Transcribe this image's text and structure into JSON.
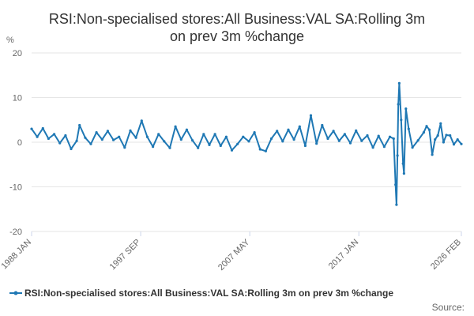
{
  "chart_data": {
    "type": "line",
    "title": "RSI:Non-specialised stores:All Business:VAL SA:Rolling 3m on prev 3m %change",
    "title_lines": [
      "RSI:Non-specialised stores:All Business:VAL SA:Rolling 3m",
      "on prev 3m %change"
    ],
    "ylabel": "%",
    "xlabel": "",
    "ylim": [
      -20,
      20
    ],
    "yticks": [
      -20,
      -10,
      0,
      10,
      20
    ],
    "x_range": [
      "1988-01",
      "2026-02"
    ],
    "xtick_labels": [
      {
        "label": "1988 JAN",
        "date": "1988-01"
      },
      {
        "label": "1997 SEP",
        "date": "1997-09"
      },
      {
        "label": "2007 MAY",
        "date": "2007-05"
      },
      {
        "label": "2017 JAN",
        "date": "2017-01"
      },
      {
        "label": "2026 FEB",
        "date": "2026-02"
      }
    ],
    "grid": true,
    "legend_position": "bottom",
    "source_label": "Source:",
    "series": [
      {
        "name": "RSI:Non-specialised stores:All Business:VAL SA:Rolling 3m on prev 3m %change",
        "color": "#1f78b4",
        "points": [
          [
            "1988-01",
            3.0
          ],
          [
            "1988-07",
            1.2
          ],
          [
            "1989-01",
            3.1
          ],
          [
            "1989-07",
            0.8
          ],
          [
            "1990-01",
            1.8
          ],
          [
            "1990-07",
            -0.2
          ],
          [
            "1991-01",
            1.5
          ],
          [
            "1991-07",
            -1.5
          ],
          [
            "1992-01",
            0.3
          ],
          [
            "1992-04",
            3.8
          ],
          [
            "1992-10",
            1.0
          ],
          [
            "1993-04",
            -0.4
          ],
          [
            "1993-10",
            2.2
          ],
          [
            "1994-04",
            0.6
          ],
          [
            "1994-10",
            2.5
          ],
          [
            "1995-04",
            0.5
          ],
          [
            "1995-10",
            1.2
          ],
          [
            "1996-04",
            -1.2
          ],
          [
            "1996-10",
            2.6
          ],
          [
            "1997-04",
            1.0
          ],
          [
            "1997-10",
            4.8
          ],
          [
            "1998-04",
            1.2
          ],
          [
            "1998-10",
            -1.0
          ],
          [
            "1999-04",
            1.8
          ],
          [
            "1999-10",
            0.2
          ],
          [
            "2000-04",
            -1.3
          ],
          [
            "2000-10",
            3.5
          ],
          [
            "2001-04",
            0.6
          ],
          [
            "2001-10",
            2.8
          ],
          [
            "2002-04",
            0.4
          ],
          [
            "2002-10",
            -1.3
          ],
          [
            "2003-04",
            1.8
          ],
          [
            "2003-10",
            -0.6
          ],
          [
            "2004-04",
            1.8
          ],
          [
            "2004-10",
            -0.8
          ],
          [
            "2005-04",
            1.2
          ],
          [
            "2005-10",
            -1.8
          ],
          [
            "2006-04",
            -0.4
          ],
          [
            "2006-10",
            1.2
          ],
          [
            "2007-04",
            0.2
          ],
          [
            "2007-10",
            2.2
          ],
          [
            "2008-04",
            -1.6
          ],
          [
            "2008-10",
            -2.0
          ],
          [
            "2009-04",
            0.8
          ],
          [
            "2009-10",
            2.5
          ],
          [
            "2010-04",
            0.2
          ],
          [
            "2010-10",
            2.8
          ],
          [
            "2011-04",
            0.6
          ],
          [
            "2011-10",
            3.5
          ],
          [
            "2012-04",
            -0.8
          ],
          [
            "2012-10",
            6.0
          ],
          [
            "2013-04",
            -0.3
          ],
          [
            "2013-10",
            3.8
          ],
          [
            "2014-04",
            0.8
          ],
          [
            "2014-10",
            2.5
          ],
          [
            "2015-04",
            0.3
          ],
          [
            "2015-10",
            1.8
          ],
          [
            "2016-04",
            -0.2
          ],
          [
            "2016-10",
            2.6
          ],
          [
            "2017-04",
            0.3
          ],
          [
            "2017-10",
            1.5
          ],
          [
            "2018-04",
            -1.2
          ],
          [
            "2018-10",
            1.4
          ],
          [
            "2019-04",
            -1.0
          ],
          [
            "2019-10",
            1.2
          ],
          [
            "2020-02",
            0.8
          ],
          [
            "2020-04",
            -9.5
          ],
          [
            "2020-05",
            -14.0
          ],
          [
            "2020-06",
            -3.0
          ],
          [
            "2020-07",
            8.5
          ],
          [
            "2020-08",
            13.2
          ],
          [
            "2020-10",
            5.0
          ],
          [
            "2020-12",
            -4.8
          ],
          [
            "2021-01",
            -7.0
          ],
          [
            "2021-03",
            7.5
          ],
          [
            "2021-06",
            3.0
          ],
          [
            "2021-10",
            -1.2
          ],
          [
            "2022-04",
            0.4
          ],
          [
            "2022-10",
            2.2
          ],
          [
            "2023-01",
            3.6
          ],
          [
            "2023-04",
            2.8
          ],
          [
            "2023-07",
            -2.8
          ],
          [
            "2023-10",
            0.6
          ],
          [
            "2024-01",
            1.5
          ],
          [
            "2024-04",
            4.2
          ],
          [
            "2024-07",
            0.0
          ],
          [
            "2024-10",
            1.6
          ],
          [
            "2025-02",
            1.5
          ],
          [
            "2025-06",
            -0.5
          ],
          [
            "2025-10",
            0.6
          ],
          [
            "2026-02",
            -0.4
          ]
        ]
      }
    ]
  }
}
